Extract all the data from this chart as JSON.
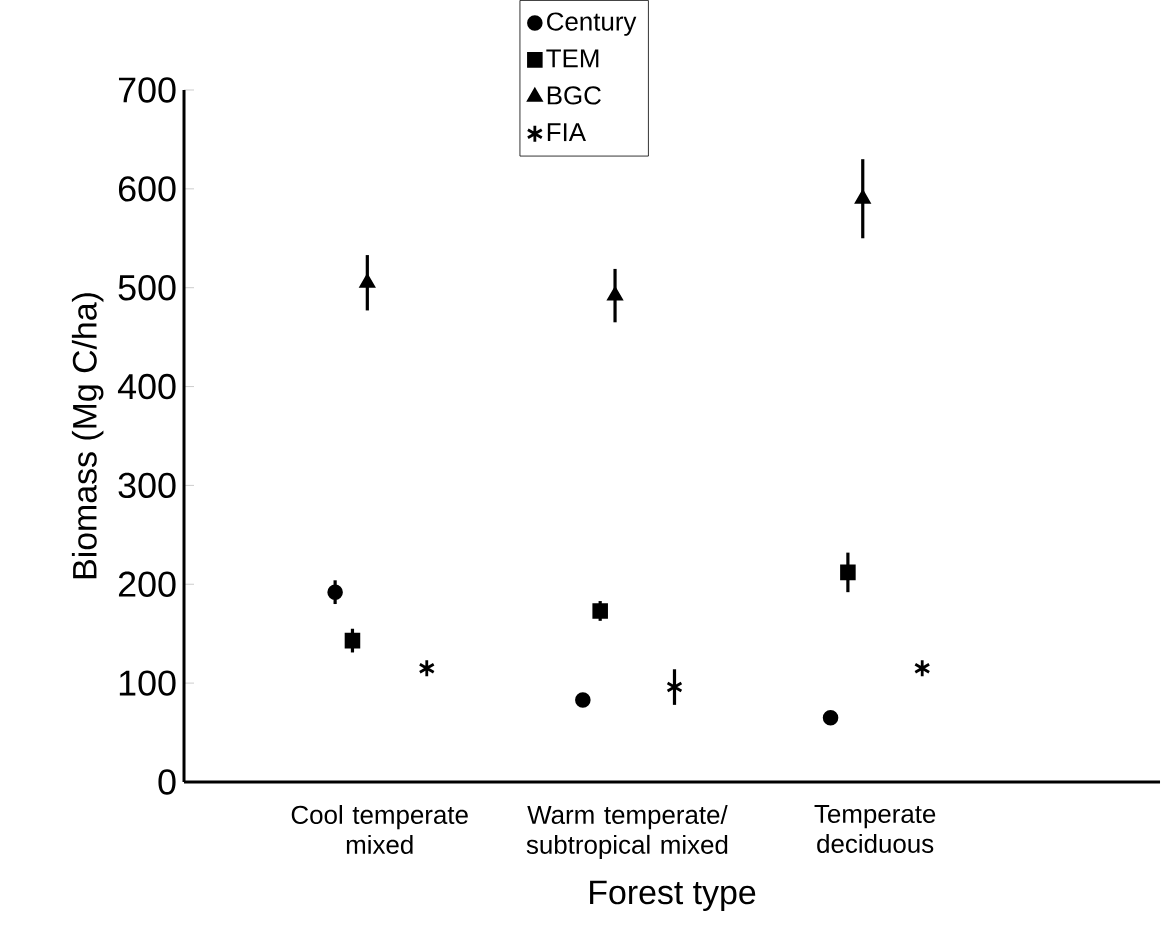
{
  "chart_data": {
    "type": "scatter",
    "xlabel": "Forest type",
    "ylabel": "Biomass (Mg C/ha)",
    "categories": [
      "Cool temperate mixed",
      "Warm temperate/ subtropical mixed",
      "Temperate deciduous"
    ],
    "ylim": [
      0,
      700
    ],
    "yticks": [
      0,
      100,
      200,
      300,
      400,
      500,
      600,
      700
    ],
    "grid": false,
    "legend": "top",
    "series": [
      {
        "name": "Century",
        "color": "#000000",
        "marker": "circle",
        "values": [
          192,
          83,
          65
        ],
        "errors": [
          12,
          null,
          null
        ]
      },
      {
        "name": "TEM",
        "color": "#000000",
        "marker": "square",
        "values": [
          143,
          173,
          212
        ],
        "errors": [
          12,
          10,
          20
        ]
      },
      {
        "name": "BGC",
        "color": "#000000",
        "marker": "triangle",
        "values": [
          505,
          492,
          590
        ],
        "errors": [
          28,
          27,
          40
        ]
      },
      {
        "name": "FIA",
        "color": "#000000",
        "marker": "cross",
        "values": [
          115,
          96,
          115
        ],
        "errors": [
          null,
          18,
          null
        ]
      }
    ]
  }
}
